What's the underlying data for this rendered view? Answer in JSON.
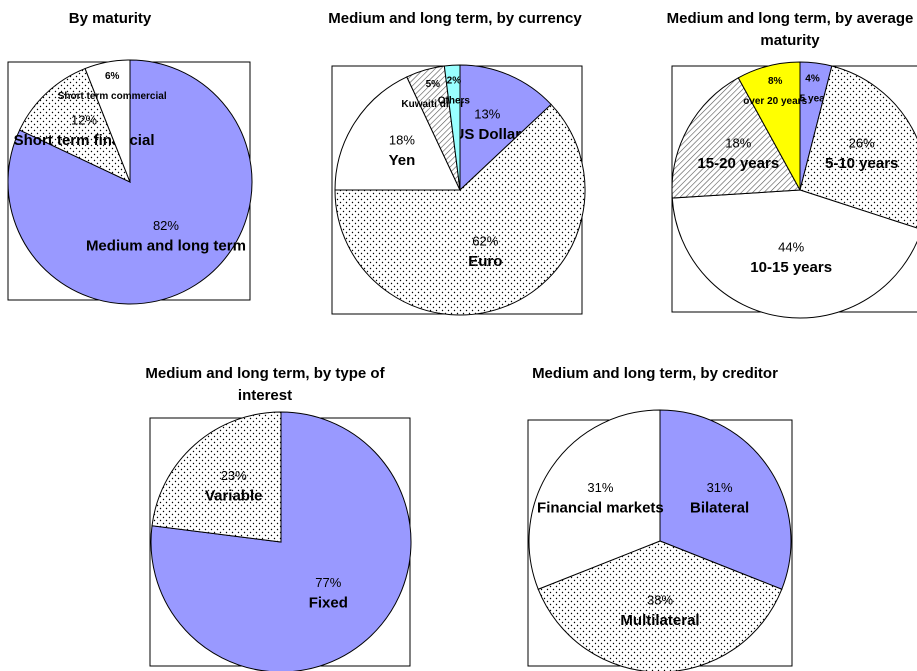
{
  "chart_data": [
    {
      "type": "pie",
      "title": "By maturity",
      "categories": [
        "Medium and long term",
        "Short term financial",
        "Short term commercial"
      ],
      "values": [
        82,
        12,
        6
      ],
      "value_labels": [
        "82%",
        "12%",
        "6%"
      ],
      "fills": [
        "#9999ff",
        "dotted",
        "#ffffff"
      ]
    },
    {
      "type": "pie",
      "title": "Medium and long term, by currency",
      "categories": [
        "US Dollar",
        "Euro",
        "Yen",
        "Kuwaiti dinar",
        "Others"
      ],
      "values": [
        13,
        62,
        18,
        5,
        2
      ],
      "value_labels": [
        "13%",
        "62%",
        "18%",
        "5%",
        "2%"
      ],
      "fills": [
        "#9999ff",
        "dotted",
        "#ffffff",
        "hatched",
        "#99ffff"
      ]
    },
    {
      "type": "pie",
      "title": "Medium and long term, by average maturity",
      "categories": [
        "1-5 years",
        "5-10 years",
        "10-15 years",
        "15-20 years",
        "over 20 years"
      ],
      "values": [
        4,
        26,
        44,
        18,
        8
      ],
      "value_labels": [
        "4%",
        "26%",
        "44%",
        "18%",
        "8%"
      ],
      "fills": [
        "#9999ff",
        "dotted",
        "#ffffff",
        "hatched",
        "#ffff00"
      ]
    },
    {
      "type": "pie",
      "title": "Medium and long term, by type of interest",
      "categories": [
        "Fixed",
        "Variable"
      ],
      "values": [
        77,
        23
      ],
      "value_labels": [
        "77%",
        "23%"
      ],
      "fills": [
        "#9999ff",
        "dotted"
      ]
    },
    {
      "type": "pie",
      "title": "Medium and long term, by creditor",
      "categories": [
        "Bilateral",
        "Multilateral",
        "Financial markets"
      ],
      "values": [
        31,
        38,
        31
      ],
      "value_labels": [
        "31%",
        "38%",
        "31%"
      ],
      "fills": [
        "#9999ff",
        "dotted",
        "#ffffff"
      ]
    }
  ]
}
